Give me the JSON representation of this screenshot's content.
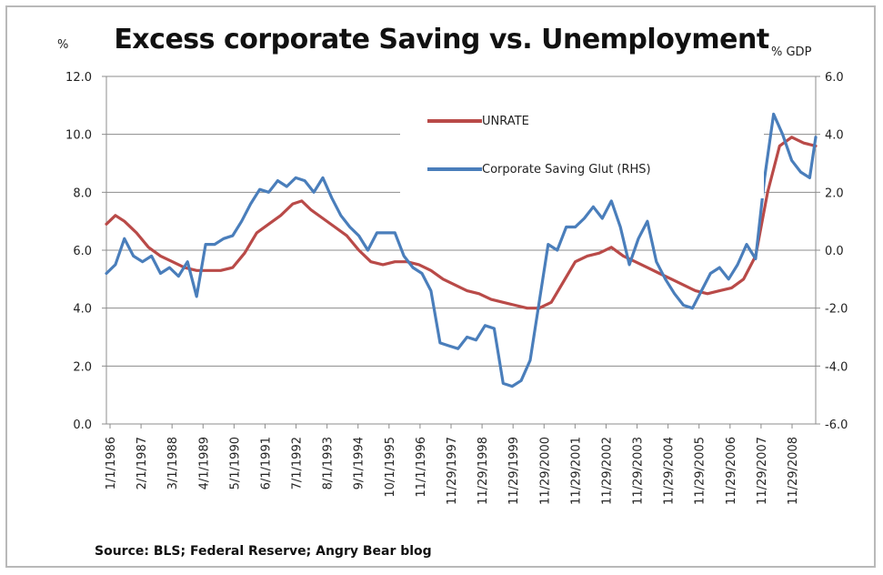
{
  "chart_data": {
    "type": "line",
    "title": "Excess corporate Saving vs. Unemployment",
    "ylabel_left": "%",
    "ylabel_right": "% GDP",
    "source": "Source: BLS; Federal Reserve; Angry Bear blog",
    "y_left": {
      "lim": [
        0,
        12
      ],
      "ticks": [
        "0.0",
        "2.0",
        "4.0",
        "6.0",
        "8.0",
        "10.0",
        "12.0"
      ]
    },
    "y_right": {
      "lim": [
        -6,
        6
      ],
      "ticks": [
        "-6.0",
        "-4.0",
        "-2.0",
        "0.0",
        "2.0",
        "4.0",
        "6.0"
      ]
    },
    "x_start_year": 1986,
    "x_end_year": 2009.6,
    "x_ticks": [
      "1/1/1986",
      "2/1/1987",
      "3/1/1988",
      "4/1/1989",
      "5/1/1990",
      "6/1/1991",
      "7/1/1992",
      "8/1/1993",
      "9/1/1994",
      "10/1/1995",
      "11/1/1996",
      "11/29/1997",
      "11/29/1998",
      "11/29/1999",
      "11/29/2000",
      "11/29/2001",
      "11/29/2002",
      "11/29/2003",
      "11/29/2004",
      "11/29/2005",
      "11/29/2006",
      "11/29/2007",
      "11/29/2008"
    ],
    "grid": true,
    "legend_position": "upper-center",
    "colors": {
      "unrate": "#b94a48",
      "saving": "#4a7ebb",
      "grid": "#8c8c8c",
      "axis": "#8c8c8c"
    },
    "series": [
      {
        "name": "UNRATE",
        "axis": "left",
        "x": [
          1986.0,
          1986.3,
          1986.6,
          1987.0,
          1987.4,
          1987.8,
          1988.2,
          1988.6,
          1989.0,
          1989.4,
          1989.8,
          1990.2,
          1990.6,
          1991.0,
          1991.4,
          1991.8,
          1992.2,
          1992.5,
          1992.8,
          1993.2,
          1993.6,
          1994.0,
          1994.4,
          1994.8,
          1995.2,
          1995.6,
          1996.0,
          1996.4,
          1996.8,
          1997.2,
          1997.6,
          1998.0,
          1998.4,
          1998.8,
          1999.2,
          1999.6,
          2000.0,
          2000.4,
          2000.8,
          2001.2,
          2001.6,
          2002.0,
          2002.4,
          2002.8,
          2003.2,
          2003.6,
          2004.0,
          2004.4,
          2004.8,
          2005.2,
          2005.6,
          2006.0,
          2006.4,
          2006.8,
          2007.2,
          2007.6,
          2008.0,
          2008.4,
          2008.8,
          2009.2,
          2009.6
        ],
        "values": [
          6.9,
          7.2,
          7.0,
          6.6,
          6.1,
          5.8,
          5.6,
          5.4,
          5.3,
          5.3,
          5.3,
          5.4,
          5.9,
          6.6,
          6.9,
          7.2,
          7.6,
          7.7,
          7.4,
          7.1,
          6.8,
          6.5,
          6.0,
          5.6,
          5.5,
          5.6,
          5.6,
          5.5,
          5.3,
          5.0,
          4.8,
          4.6,
          4.5,
          4.3,
          4.2,
          4.1,
          4.0,
          4.0,
          4.2,
          4.9,
          5.6,
          5.8,
          5.9,
          6.1,
          5.8,
          5.6,
          5.4,
          5.2,
          5.0,
          4.8,
          4.6,
          4.5,
          4.6,
          4.7,
          5.0,
          5.8,
          8.0,
          9.6,
          9.9,
          9.7,
          9.6
        ]
      },
      {
        "name": "Corporate Saving Glut (RHS)",
        "axis": "right",
        "x": [
          1986.0,
          1986.3,
          1986.6,
          1986.9,
          1987.2,
          1987.5,
          1987.8,
          1988.1,
          1988.4,
          1988.7,
          1989.0,
          1989.3,
          1989.6,
          1989.9,
          1990.2,
          1990.5,
          1990.8,
          1991.1,
          1991.4,
          1991.7,
          1992.0,
          1992.3,
          1992.6,
          1992.9,
          1993.2,
          1993.5,
          1993.8,
          1994.1,
          1994.4,
          1994.7,
          1995.0,
          1995.3,
          1995.6,
          1995.9,
          1996.2,
          1996.5,
          1996.8,
          1997.1,
          1997.4,
          1997.7,
          1998.0,
          1998.3,
          1998.6,
          1998.9,
          1999.2,
          1999.5,
          1999.8,
          2000.1,
          2000.4,
          2000.7,
          2001.0,
          2001.3,
          2001.6,
          2001.9,
          2002.2,
          2002.5,
          2002.8,
          2003.1,
          2003.4,
          2003.7,
          2004.0,
          2004.3,
          2004.6,
          2004.9,
          2005.2,
          2005.5,
          2005.8,
          2006.1,
          2006.4,
          2006.7,
          2007.0,
          2007.3,
          2007.6,
          2007.9,
          2008.2,
          2008.5,
          2008.8,
          2009.1,
          2009.4,
          2009.6
        ],
        "values": [
          -0.8,
          -0.5,
          0.4,
          -0.2,
          -0.4,
          -0.2,
          -0.8,
          -0.6,
          -0.9,
          -0.4,
          -1.6,
          0.2,
          0.2,
          0.4,
          0.5,
          1.0,
          1.6,
          2.1,
          2.0,
          2.4,
          2.2,
          2.5,
          2.4,
          2.0,
          2.5,
          1.8,
          1.2,
          0.8,
          0.5,
          0.0,
          0.6,
          0.6,
          0.6,
          -0.2,
          -0.6,
          -0.8,
          -1.4,
          -3.2,
          -3.3,
          -3.4,
          -3.0,
          -3.1,
          -2.6,
          -2.7,
          -4.6,
          -4.7,
          -4.5,
          -3.8,
          -1.8,
          0.2,
          0.0,
          0.8,
          0.8,
          1.1,
          1.5,
          1.1,
          1.7,
          0.8,
          -0.5,
          0.4,
          1.0,
          -0.4,
          -1.0,
          -1.5,
          -1.9,
          -2.0,
          -1.4,
          -0.8,
          -0.6,
          -1.0,
          -0.5,
          0.2,
          -0.3,
          2.5,
          4.7,
          4.0,
          3.1,
          2.7,
          2.5,
          3.9
        ]
      }
    ]
  }
}
